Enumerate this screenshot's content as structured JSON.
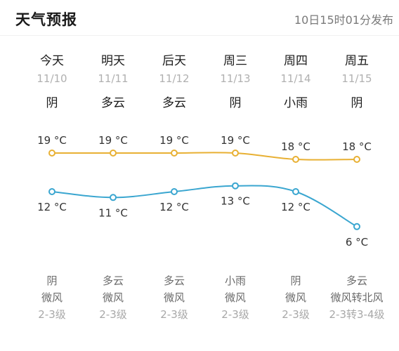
{
  "header": {
    "title": "天气预报",
    "published": "10日15时01分发布"
  },
  "days": [
    {
      "name": "今天",
      "date": "11/10",
      "day_weather": "阴",
      "night_weather": "阴",
      "wind": "微风",
      "wind_level": "2-3级"
    },
    {
      "name": "明天",
      "date": "11/11",
      "day_weather": "多云",
      "night_weather": "多云",
      "wind": "微风",
      "wind_level": "2-3级"
    },
    {
      "name": "后天",
      "date": "11/12",
      "day_weather": "多云",
      "night_weather": "多云",
      "wind": "微风",
      "wind_level": "2-3级"
    },
    {
      "name": "周三",
      "date": "11/13",
      "day_weather": "阴",
      "night_weather": "小雨",
      "wind": "微风",
      "wind_level": "2-3级"
    },
    {
      "name": "周四",
      "date": "11/14",
      "day_weather": "小雨",
      "night_weather": "阴",
      "wind": "微风",
      "wind_level": "2-3级"
    },
    {
      "name": "周五",
      "date": "11/15",
      "day_weather": "阴",
      "night_weather": "多云",
      "wind": "微风转北风",
      "wind_level": "2-3转3-4级"
    }
  ],
  "chart_data": {
    "type": "line",
    "categories": [
      "11/10",
      "11/11",
      "11/12",
      "11/13",
      "11/14",
      "11/15"
    ],
    "unit": "°C",
    "series": [
      {
        "values": [
          19,
          19,
          19,
          19,
          18,
          18
        ],
        "color": "#e8b033"
      },
      {
        "values": [
          12,
          11,
          12,
          13,
          12,
          6
        ],
        "color": "#3aa6d0"
      }
    ],
    "grid": false
  }
}
